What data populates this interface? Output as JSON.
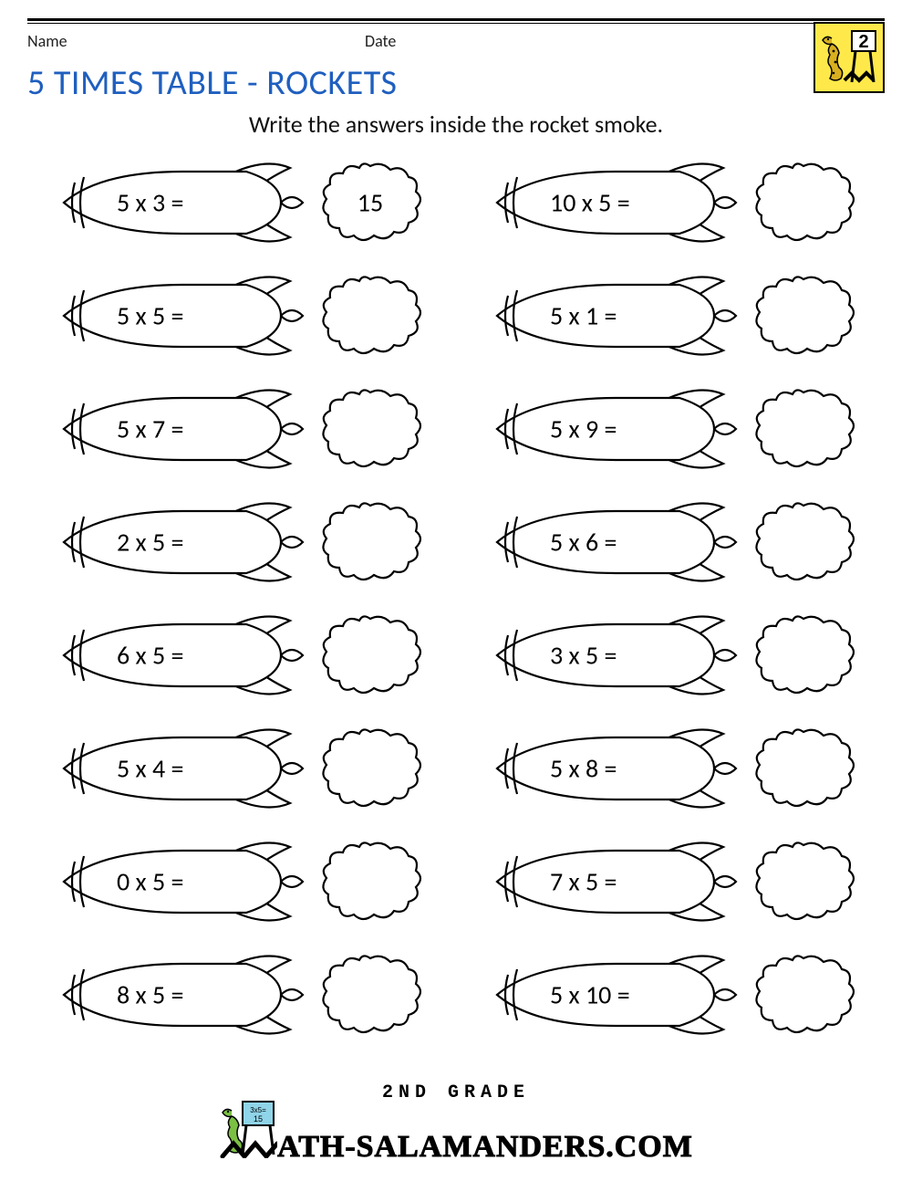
{
  "header": {
    "name_label": "Name",
    "date_label": "Date"
  },
  "title": "5 TIMES TABLE - ROCKETS",
  "title_color": "#1f5fbf",
  "instruction": "Write the answers inside the rocket smoke.",
  "badge": {
    "bg_color": "#ffe94a",
    "number": "2"
  },
  "stroke_color": "#000000",
  "stroke_width": 2.2,
  "problem_fontsize": 28,
  "answer_fontsize": 28,
  "problems": {
    "columns": 2,
    "rows": 8,
    "left": [
      {
        "expr": "5 x 3 =",
        "answer": "15"
      },
      {
        "expr": "5 x 5 =",
        "answer": ""
      },
      {
        "expr": "5 x 7 =",
        "answer": ""
      },
      {
        "expr": "2 x 5 =",
        "answer": ""
      },
      {
        "expr": "6 x 5 =",
        "answer": ""
      },
      {
        "expr": "5 x 4 =",
        "answer": ""
      },
      {
        "expr": "0 x 5 =",
        "answer": ""
      },
      {
        "expr": "8 x 5 =",
        "answer": ""
      }
    ],
    "right": [
      {
        "expr": "10 x 5 =",
        "answer": ""
      },
      {
        "expr": "5 x 1 =",
        "answer": ""
      },
      {
        "expr": "5 x 9 =",
        "answer": ""
      },
      {
        "expr": "5 x 6 =",
        "answer": ""
      },
      {
        "expr": "3 x 5 =",
        "answer": ""
      },
      {
        "expr": "5 x 8 =",
        "answer": ""
      },
      {
        "expr": "7 x 5 =",
        "answer": ""
      },
      {
        "expr": "5 x 10 =",
        "answer": ""
      }
    ]
  },
  "footer": {
    "top_line": "2ND GRADE",
    "main_text": "ATH-SALAMANDERS.COM",
    "board_title": "3x5=",
    "board_sub": "15"
  }
}
